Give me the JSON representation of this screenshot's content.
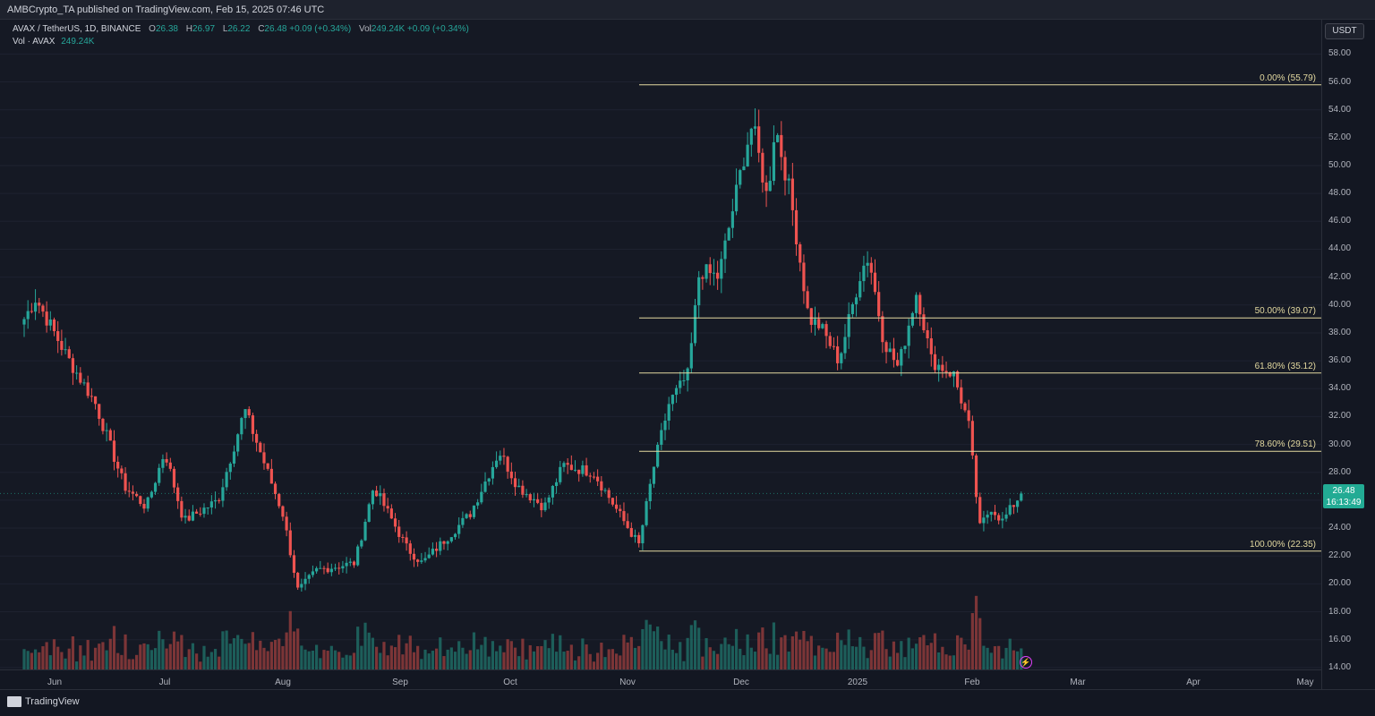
{
  "header": {
    "publisher_text": "AMBCrypto_TA published on TradingView.com, Feb 15, 2025 07:46 UTC"
  },
  "legend": {
    "symbol": "AVAX / TetherUS, 1D, BINANCE",
    "o_label": "O",
    "o_value": "26.38",
    "h_label": "H",
    "h_value": "26.97",
    "l_label": "L",
    "l_value": "26.22",
    "c_label": "C",
    "c_value": "26.48 +0.09 (+0.34%)",
    "vol_label": "Vol",
    "vol_value": "249.24K +0.09 (+0.34%)",
    "vol_row_label": "Vol · AVAX",
    "vol_row_value": "249.24K"
  },
  "axis": {
    "currency": "USDT",
    "price_ticks": [
      "58.00",
      "56.00",
      "54.00",
      "52.00",
      "50.00",
      "48.00",
      "46.00",
      "44.00",
      "42.00",
      "40.00",
      "38.00",
      "36.00",
      "34.00",
      "32.00",
      "30.00",
      "28.00",
      "26.00",
      "24.00",
      "22.00",
      "20.00",
      "18.00",
      "16.00",
      "14.00"
    ],
    "time_ticks": [
      "Jun",
      "Jul",
      "Aug",
      "Sep",
      "Oct",
      "Nov",
      "Dec",
      "2025",
      "Feb",
      "Mar",
      "Apr",
      "May"
    ]
  },
  "current_price": {
    "value": "26.48",
    "countdown": "16:13:49"
  },
  "colors": {
    "up": "#26a69a",
    "down": "#ef5350",
    "fib": "#e3d9a0",
    "background": "#151924",
    "price_tag": "#22ab94"
  },
  "footer": {
    "brand": "TradingView"
  },
  "icons": {
    "logo": "tradingview-logo-icon",
    "bolt": "lightning-icon"
  },
  "chart_data": {
    "type": "candlestick",
    "title": "AVAX / TetherUS, 1D, BINANCE",
    "ylabel": "USDT",
    "ylim": [
      14,
      58
    ],
    "x_categories": [
      "Jun",
      "Jul",
      "Aug",
      "Sep",
      "Oct",
      "Nov",
      "Dec",
      "2025",
      "Feb",
      "Mar",
      "Apr",
      "May"
    ],
    "close_path_keypoints": [
      {
        "x": "May 24",
        "y": 39.0
      },
      {
        "x": "May 27",
        "y": 40.5
      },
      {
        "x": "Jun 5",
        "y": 36.0
      },
      {
        "x": "Jun 12",
        "y": 33.0
      },
      {
        "x": "Jun 20",
        "y": 27.0
      },
      {
        "x": "Jun 26",
        "y": 25.5
      },
      {
        "x": "Jul 1",
        "y": 29.5
      },
      {
        "x": "Jul 6",
        "y": 24.5
      },
      {
        "x": "Jul 15",
        "y": 26.0
      },
      {
        "x": "Jul 22",
        "y": 32.5
      },
      {
        "x": "Aug 1",
        "y": 25.0
      },
      {
        "x": "Aug 5",
        "y": 19.5
      },
      {
        "x": "Aug 10",
        "y": 21.0
      },
      {
        "x": "Aug 20",
        "y": 21.5
      },
      {
        "x": "Aug 25",
        "y": 27.0
      },
      {
        "x": "Sep 3",
        "y": 22.5
      },
      {
        "x": "Sep 7",
        "y": 21.5
      },
      {
        "x": "Sep 20",
        "y": 25.0
      },
      {
        "x": "Sep 28",
        "y": 29.5
      },
      {
        "x": "Oct 3",
        "y": 27.0
      },
      {
        "x": "Oct 10",
        "y": 25.5
      },
      {
        "x": "Oct 15",
        "y": 28.5
      },
      {
        "x": "Oct 23",
        "y": 28.0
      },
      {
        "x": "Oct 31",
        "y": 24.5
      },
      {
        "x": "Nov 4",
        "y": 22.8
      },
      {
        "x": "Nov 8",
        "y": 28.5
      },
      {
        "x": "Nov 12",
        "y": 33.0
      },
      {
        "x": "Nov 17",
        "y": 35.0
      },
      {
        "x": "Nov 20",
        "y": 42.5
      },
      {
        "x": "Nov 25",
        "y": 42.0
      },
      {
        "x": "Dec 2",
        "y": 51.0
      },
      {
        "x": "Dec 4",
        "y": 53.0
      },
      {
        "x": "Dec 8",
        "y": 47.5
      },
      {
        "x": "Dec 10",
        "y": 53.0
      },
      {
        "x": "Dec 14",
        "y": 48.0
      },
      {
        "x": "Dec 19",
        "y": 39.0
      },
      {
        "x": "Dec 22",
        "y": 38.5
      },
      {
        "x": "Dec 27",
        "y": 36.0
      },
      {
        "x": "Jan 2",
        "y": 42.5
      },
      {
        "x": "Jan 4",
        "y": 43.5
      },
      {
        "x": "Jan 8",
        "y": 37.5
      },
      {
        "x": "Jan 12",
        "y": 35.5
      },
      {
        "x": "Jan 17",
        "y": 41.0
      },
      {
        "x": "Jan 21",
        "y": 36.0
      },
      {
        "x": "Jan 27",
        "y": 35.0
      },
      {
        "x": "Jan 31",
        "y": 31.5
      },
      {
        "x": "Feb 3",
        "y": 24.0
      },
      {
        "x": "Feb 6",
        "y": 25.5
      },
      {
        "x": "Feb 9",
        "y": 24.5
      },
      {
        "x": "Feb 14",
        "y": 26.48
      }
    ],
    "fibonacci": [
      {
        "label": "0.00% (55.79)",
        "level": 55.79
      },
      {
        "label": "50.00% (39.07)",
        "level": 39.07
      },
      {
        "label": "61.80% (35.12)",
        "level": 35.12
      },
      {
        "label": "78.60% (29.51)",
        "level": 29.51
      },
      {
        "label": "100.00% (22.35)",
        "level": 22.35
      }
    ],
    "last": {
      "open": 26.38,
      "high": 26.97,
      "low": 26.22,
      "close": 26.48,
      "volume": "249.24K"
    },
    "grid": true
  }
}
